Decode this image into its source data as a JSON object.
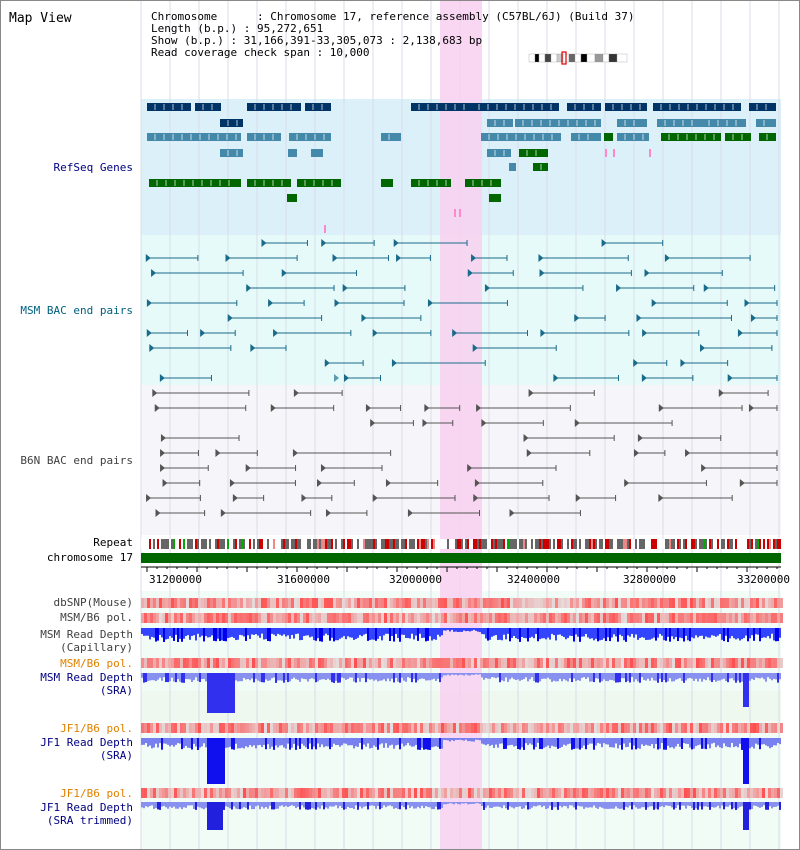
{
  "title": "Map View",
  "info": {
    "chromosome_line": "Chromosome      : Chromosome 17, reference assembly (C57BL/6J) (Build 37)",
    "length_line": "Length (b.p.) : 95,272,651",
    "show_line": "Show (b.p.) : 31,166,391-33,305,073 : 2,138,683 bp",
    "coverage_line": "Read coverage check span : 10,000"
  },
  "tracks": {
    "refseq": "RefSeq Genes",
    "msm_bac": "MSM BAC end pairs",
    "b6n_bac": "B6N BAC end pairs",
    "repeat": "Repeat",
    "chromosome": "chromosome 17",
    "dbsnp": "dbSNP(Mouse)",
    "msm_b6_pol_1": "MSM/B6 pol.",
    "msm_depth_cap_1": "MSM Read Depth",
    "msm_depth_cap_2": "(Capillary)",
    "msm_b6_pol_2": "MSM/B6 pol.",
    "msm_depth_sra_1": "MSM Read Depth",
    "msm_depth_sra_2": "(SRA)",
    "jf1_b6_pol_1": "JF1/B6 pol.",
    "jf1_depth_sra_1": "JF1 Read Depth",
    "jf1_depth_sra_2": "(SRA)",
    "jf1_b6_pol_2": "JF1/B6 pol.",
    "jf1_depth_trim_1": "JF1 Read Depth",
    "jf1_depth_trim_2": "(SRA trimmed)"
  },
  "axis_ticks": [
    "31200000",
    "31600000",
    "32000000",
    "32400000",
    "32800000",
    "33200000"
  ],
  "colors": {
    "refseq_label": "#000080",
    "msm_label": "#006080",
    "b6n_label": "#404040",
    "orange_label": "#e08000",
    "blue_label": "#000080",
    "highlight": "#f8d0f0",
    "chromosome_bar": "#006600"
  }
}
